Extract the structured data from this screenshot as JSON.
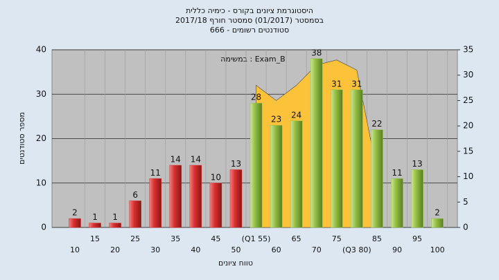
{
  "chart_data": {
    "type": "bar",
    "title": "היסטוגרמת ציונים בקורס - כימיה כללית",
    "subtitle": "בסמסטר  (01/2017)  סמסטר חורף 2017/18",
    "subtitle2": "סטודנטים רשומים - 666",
    "annotation": "במשימה : Exam_B",
    "x_label": "טווח ציונים",
    "y_label": "מספר סטודנטים",
    "categories": [
      "10",
      "15",
      "20",
      "25",
      "30",
      "35",
      "40",
      "45",
      "50",
      "(Q1 55)",
      "60",
      "65",
      "70",
      "75",
      "(Q3 80)",
      "85",
      "90",
      "95",
      "100"
    ],
    "series": [
      {
        "color": "#d93030",
        "values": [
          2,
          1,
          1,
          6,
          11,
          14,
          14,
          10,
          13,
          null,
          null,
          null,
          null,
          null,
          null,
          null,
          null,
          null,
          null
        ]
      },
      {
        "color": "#93c044",
        "values": [
          null,
          null,
          null,
          null,
          null,
          null,
          null,
          null,
          null,
          28,
          23,
          24,
          38,
          31,
          31,
          22,
          11,
          13,
          2
        ]
      },
      {
        "color": "#fcc23a",
        "axis": "y2",
        "values": [
          null,
          null,
          null,
          null,
          null,
          null,
          null,
          null,
          null,
          28,
          25,
          28,
          32,
          33,
          31,
          11,
          null,
          null,
          null
        ]
      }
    ],
    "ylim": [
      0,
      40
    ],
    "yticks": [
      0,
      10,
      20,
      30,
      40
    ],
    "y2lim": [
      0,
      35
    ],
    "y2ticks": [
      0,
      5,
      10,
      15,
      20,
      25,
      30,
      35
    ],
    "grid": true
  }
}
